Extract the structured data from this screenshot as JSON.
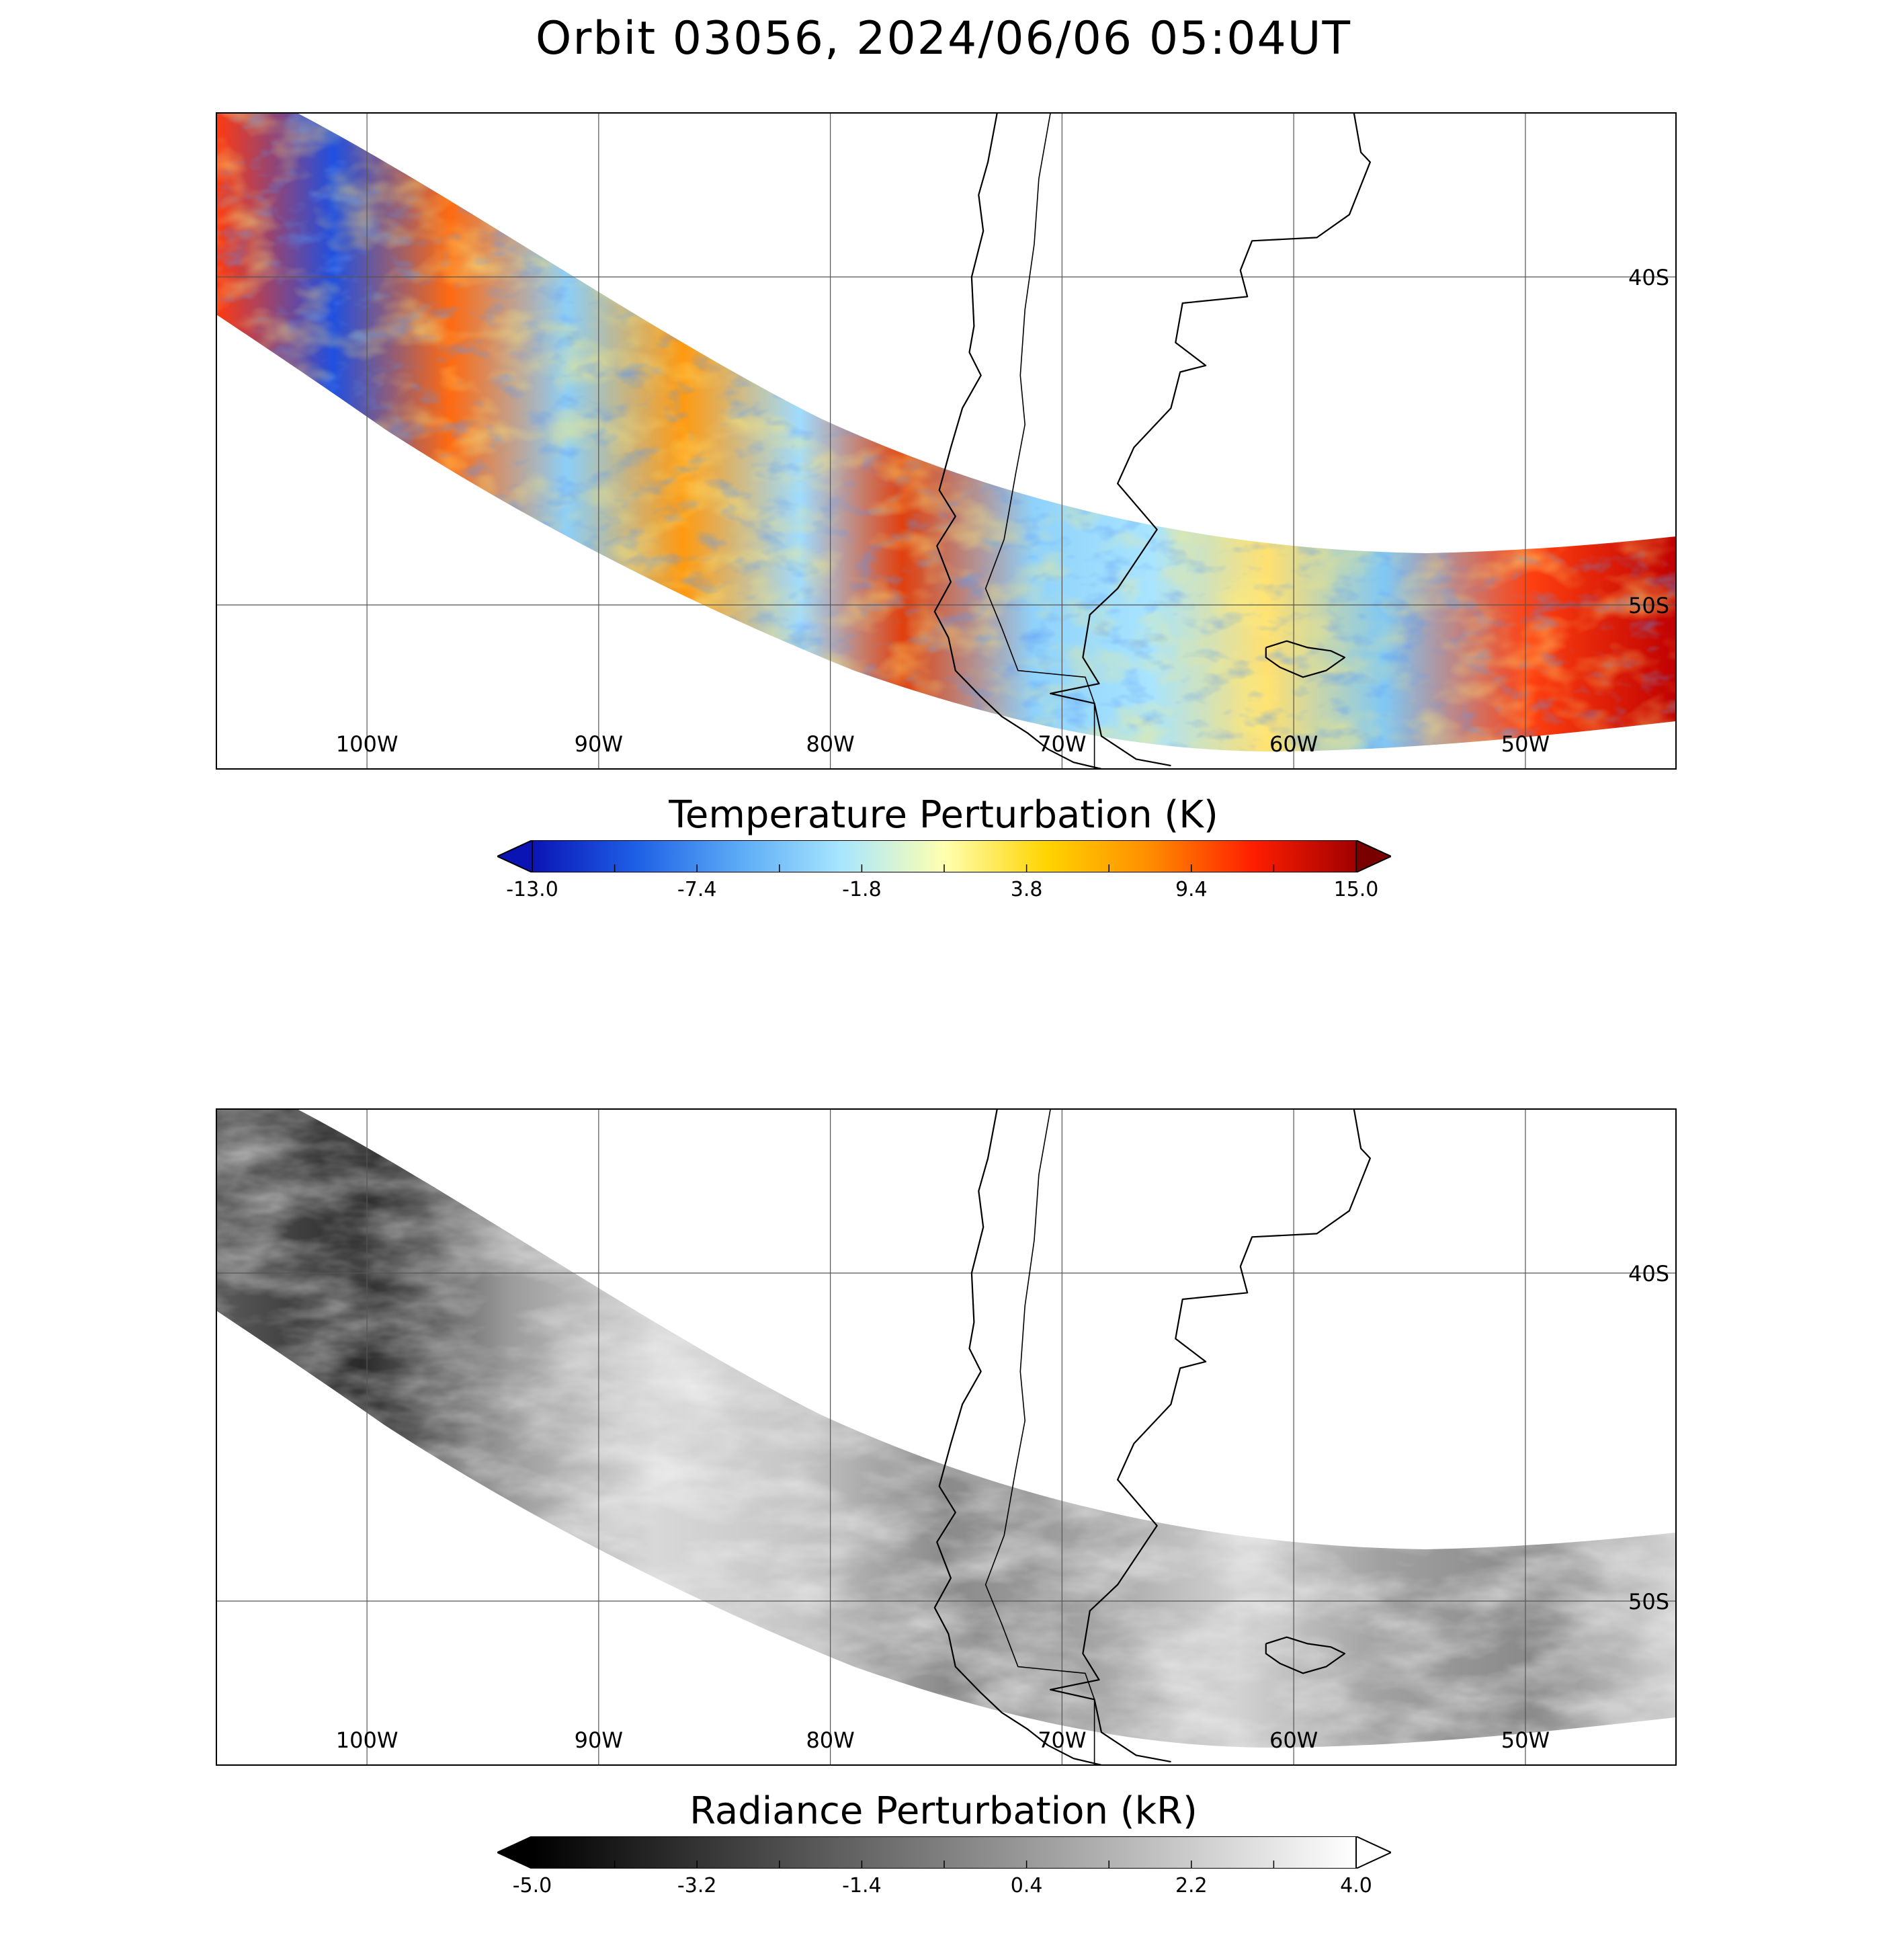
{
  "title": "Orbit 03056, 2024/06/06 05:04UT",
  "lon_labels": [
    "100W",
    "90W",
    "80W",
    "70W",
    "60W",
    "50W"
  ],
  "lon_values": [
    -100,
    -90,
    -80,
    -70,
    -60,
    -50
  ],
  "lat_labels": [
    "40S",
    "50S"
  ],
  "lat_values": [
    -40,
    -50
  ],
  "extent": {
    "lon_min": -106.5,
    "lon_max": -43.5,
    "lat_max": -35.0,
    "lat_min": -55.0
  },
  "panels": [
    {
      "id": "temperature",
      "colorbar_title": "Temperature Perturbation (K)",
      "colorbar_ticks": [
        "-13.0",
        "-7.4",
        "-1.8",
        "3.8",
        "9.4",
        "15.0"
      ],
      "colorbar_range": [
        -13.0,
        15.0
      ],
      "colormap": [
        "#0a14b4",
        "#1e5fe6",
        "#5aaaf5",
        "#a8e6ff",
        "#ffffb0",
        "#ffd400",
        "#ff8c00",
        "#ff1e00",
        "#a00000"
      ],
      "extend": "both",
      "under_color": "#0a14b4",
      "over_color": "#7a0000"
    },
    {
      "id": "radiance",
      "colorbar_title": "Radiance Perturbation (kR)",
      "colorbar_ticks": [
        "-5.0",
        "-3.2",
        "-1.4",
        "0.4",
        "2.2",
        "4.0"
      ],
      "colorbar_range": [
        -5.0,
        4.0
      ],
      "colormap": [
        "#000000",
        "#ffffff"
      ],
      "extend": "both",
      "under_color": "#000000",
      "over_color": "#ffffff"
    }
  ]
}
